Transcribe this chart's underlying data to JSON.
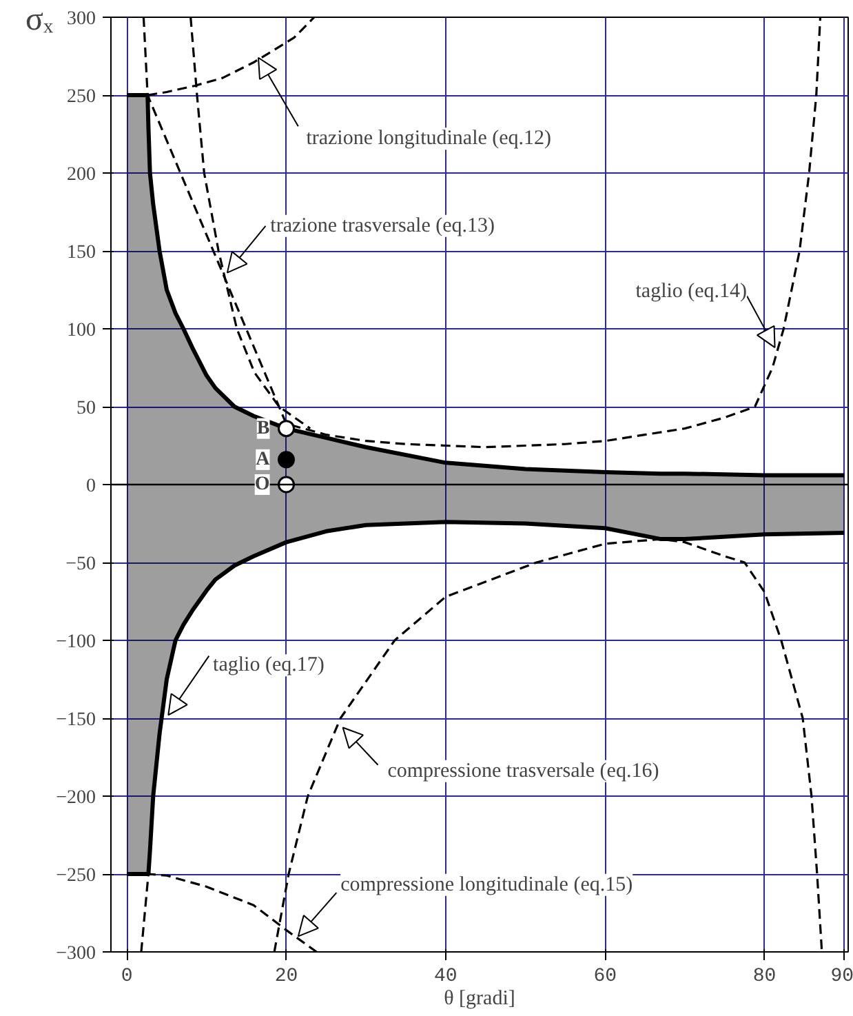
{
  "chart_data": {
    "type": "line",
    "xlabel": "θ [gradi]",
    "ylabel": "σₓ",
    "xlim": [
      -2,
      90.5
    ],
    "ylim": [
      -300,
      300
    ],
    "xticks": [
      0,
      20,
      40,
      60,
      80,
      90
    ],
    "yticks": [
      -300,
      -250,
      -200,
      -150,
      -100,
      -50,
      0,
      50,
      100,
      150,
      200,
      250,
      300
    ],
    "grid": true,
    "legend": false,
    "ref_lines": [
      {
        "axis": "y",
        "value": 0,
        "color": "#000000"
      }
    ],
    "series": [
      {
        "color": "#000000",
        "line_style": "solid",
        "x": [
          0,
          2.6,
          2.7,
          2.9,
          3.3,
          4.1,
          5,
          6.1,
          7.1,
          8.2,
          10,
          11.1,
          13.5,
          15.9,
          20,
          25,
          30,
          40,
          50,
          60,
          67,
          70,
          80,
          90
        ],
        "values": [
          250,
          250,
          230,
          200,
          180,
          150,
          125,
          110,
          100,
          88,
          70,
          62,
          50,
          44,
          36,
          30,
          24,
          14,
          10,
          8,
          7,
          7,
          6,
          6
        ],
        "upper": [
          250,
          250,
          230,
          200,
          180,
          150,
          125,
          110,
          100,
          88,
          70,
          62,
          50,
          44,
          36,
          30,
          24,
          14,
          10,
          8,
          7,
          7,
          6,
          6
        ],
        "lower": [
          -250,
          -250,
          -250,
          -235,
          -200,
          -160,
          -125,
          -100,
          -90,
          -81,
          -68,
          -61,
          -52,
          -46,
          -37,
          -30,
          -26,
          -24,
          -25,
          -28,
          -35,
          -35,
          -32,
          -31
        ]
      },
      {
        "name": "taglio (eq.17)",
        "color": "#000000",
        "line_style": "solid",
        "x": [
          0,
          2.6,
          2.7,
          2.9,
          3.3,
          4.1,
          5,
          6.1,
          7.1,
          8.2,
          10,
          11.1,
          13.5,
          15.9,
          20,
          25,
          30,
          40,
          50,
          60,
          67,
          70,
          80,
          90
        ],
        "values": [
          -250,
          -250,
          -250,
          -235,
          -200,
          -160,
          -125,
          -100,
          -90,
          -81,
          -68,
          -61,
          -52,
          -46,
          -37,
          -30,
          -26,
          -24,
          -25,
          -28,
          -35,
          -35,
          -32,
          -31
        ]
      },
      {
        "name": "trazione longitudinale (eq.12)",
        "color": "#000000",
        "line_style": "dashed",
        "x": [
          2.6,
          5,
          8.5,
          12,
          15.9,
          18.8,
          21,
          23.5
        ],
        "values": [
          250,
          252,
          256,
          261,
          271,
          280,
          287,
          300
        ]
      },
      {
        "name": "trazione trasversale (eq.13)",
        "color": "#000000",
        "line_style": "dashed",
        "x": [
          8,
          8.8,
          9.7,
          11.5,
          13.8,
          16,
          19.1,
          23
        ],
        "values": [
          300,
          250,
          200,
          150,
          100,
          72,
          50,
          36
        ]
      },
      {
        "name": "taglio (eq.14)",
        "color": "#000000",
        "line_style": "dashed",
        "x": [
          2.1,
          2.6,
          20,
          25,
          30,
          35,
          40,
          45,
          50,
          55,
          60,
          65,
          70,
          75,
          78.8,
          81,
          82.4,
          84.4,
          85.6,
          86.5,
          87
        ],
        "values": [
          300,
          250,
          39,
          32,
          28,
          26,
          25,
          24,
          25,
          26,
          28,
          32,
          36,
          43,
          50,
          75,
          100,
          150,
          200,
          250,
          300
        ]
      },
      {
        "name": "compressione trasversale (eq.16)",
        "color": "#000000",
        "line_style": "dashed",
        "x": [
          18.5,
          20.3,
          22.7,
          26.8,
          33.6,
          40,
          51.4,
          60,
          67,
          70,
          75,
          77.5,
          80,
          82.1,
          84.8,
          85.9,
          86.6,
          87.2
        ],
        "values": [
          -300,
          -250,
          -200,
          -150,
          -100,
          -72,
          -50,
          -38,
          -35,
          -37,
          -46,
          -50,
          -69,
          -100,
          -150,
          -200,
          -250,
          -300
        ]
      },
      {
        "name": "compressione longitudinale (eq.15)",
        "color": "#000000",
        "line_style": "dashed",
        "x": [
          1.8,
          2.7,
          5,
          9.9,
          15.9,
          20,
          23.8
        ],
        "values": [
          -300,
          -250,
          -251,
          -258,
          -270,
          -286,
          -300
        ]
      },
      {
        "name": "B",
        "type": "scatter",
        "marker": "circle",
        "color": "#ffffff",
        "x": [
          20
        ],
        "values": [
          36
        ]
      },
      {
        "name": "A",
        "type": "scatter",
        "marker": "circle",
        "color": "#000000",
        "x": [
          20
        ],
        "values": [
          16
        ]
      },
      {
        "name": "O",
        "type": "scatter",
        "marker": "circle",
        "color": "#ffffff",
        "x": [
          20
        ],
        "values": [
          0
        ]
      }
    ]
  }
}
